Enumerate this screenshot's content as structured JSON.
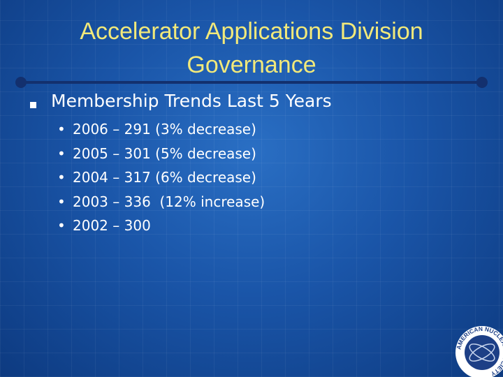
{
  "header": {
    "title_lines": [
      "Accelerator Applications Division",
      "Governance"
    ]
  },
  "body": {
    "bullet": "Membership Trends Last 5 Years",
    "sub_bullets": [
      "2006 – 291 (3% decrease)",
      "2005 – 301 (5% decrease)",
      "2004 – 317 (6% decrease)",
      "2003 – 336  (12% increase)",
      "2002 – 300"
    ]
  },
  "logo": {
    "text": "AMERICAN NUCLEAR SOCIETY"
  }
}
